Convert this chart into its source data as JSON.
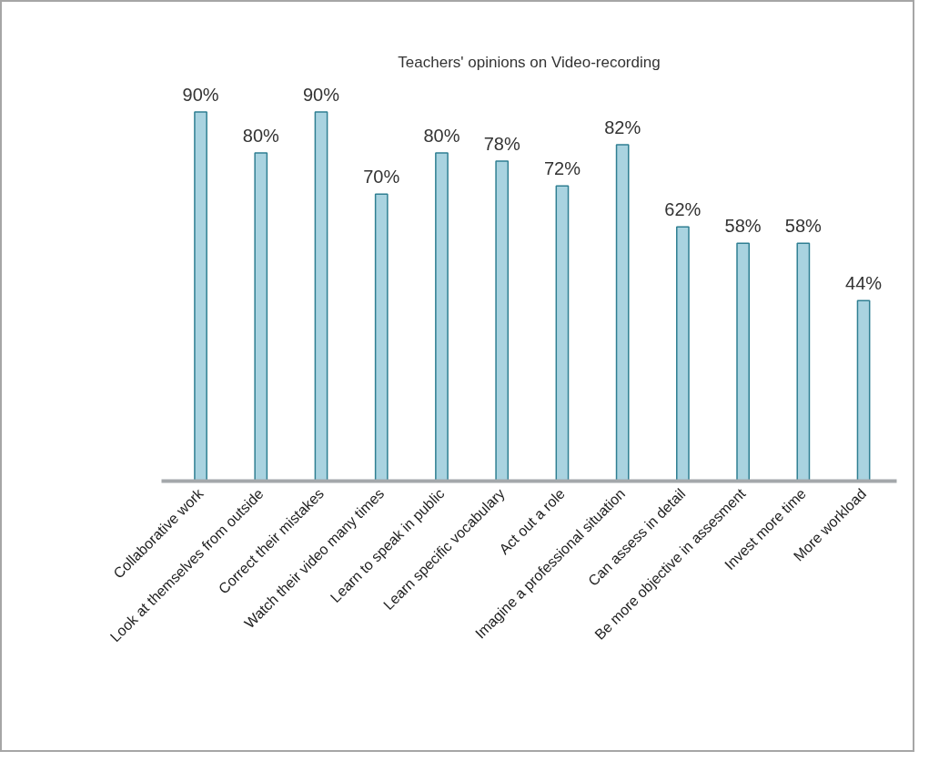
{
  "chart_data": {
    "type": "bar",
    "title": "Teachers' opinions on Video-recording",
    "categories": [
      "Collaborative work",
      "Look at themselves from outside",
      "Correct their mistakes",
      "Watch their video many times",
      "Learn to speak in public",
      "Learn specific vocabulary",
      "Act out a role",
      "Imagine a professional situation",
      "Can assess in detail",
      "Be more objective in assesment",
      "Invest more time",
      "More workload"
    ],
    "values": [
      90,
      80,
      90,
      70,
      80,
      78,
      72,
      82,
      62,
      58,
      58,
      44
    ],
    "value_labels": [
      "90%",
      "80%",
      "90%",
      "70%",
      "80%",
      "78%",
      "72%",
      "82%",
      "62%",
      "58%",
      "58%",
      "44%"
    ],
    "color": "#a9d3e0",
    "tick_labels": "x"
  }
}
